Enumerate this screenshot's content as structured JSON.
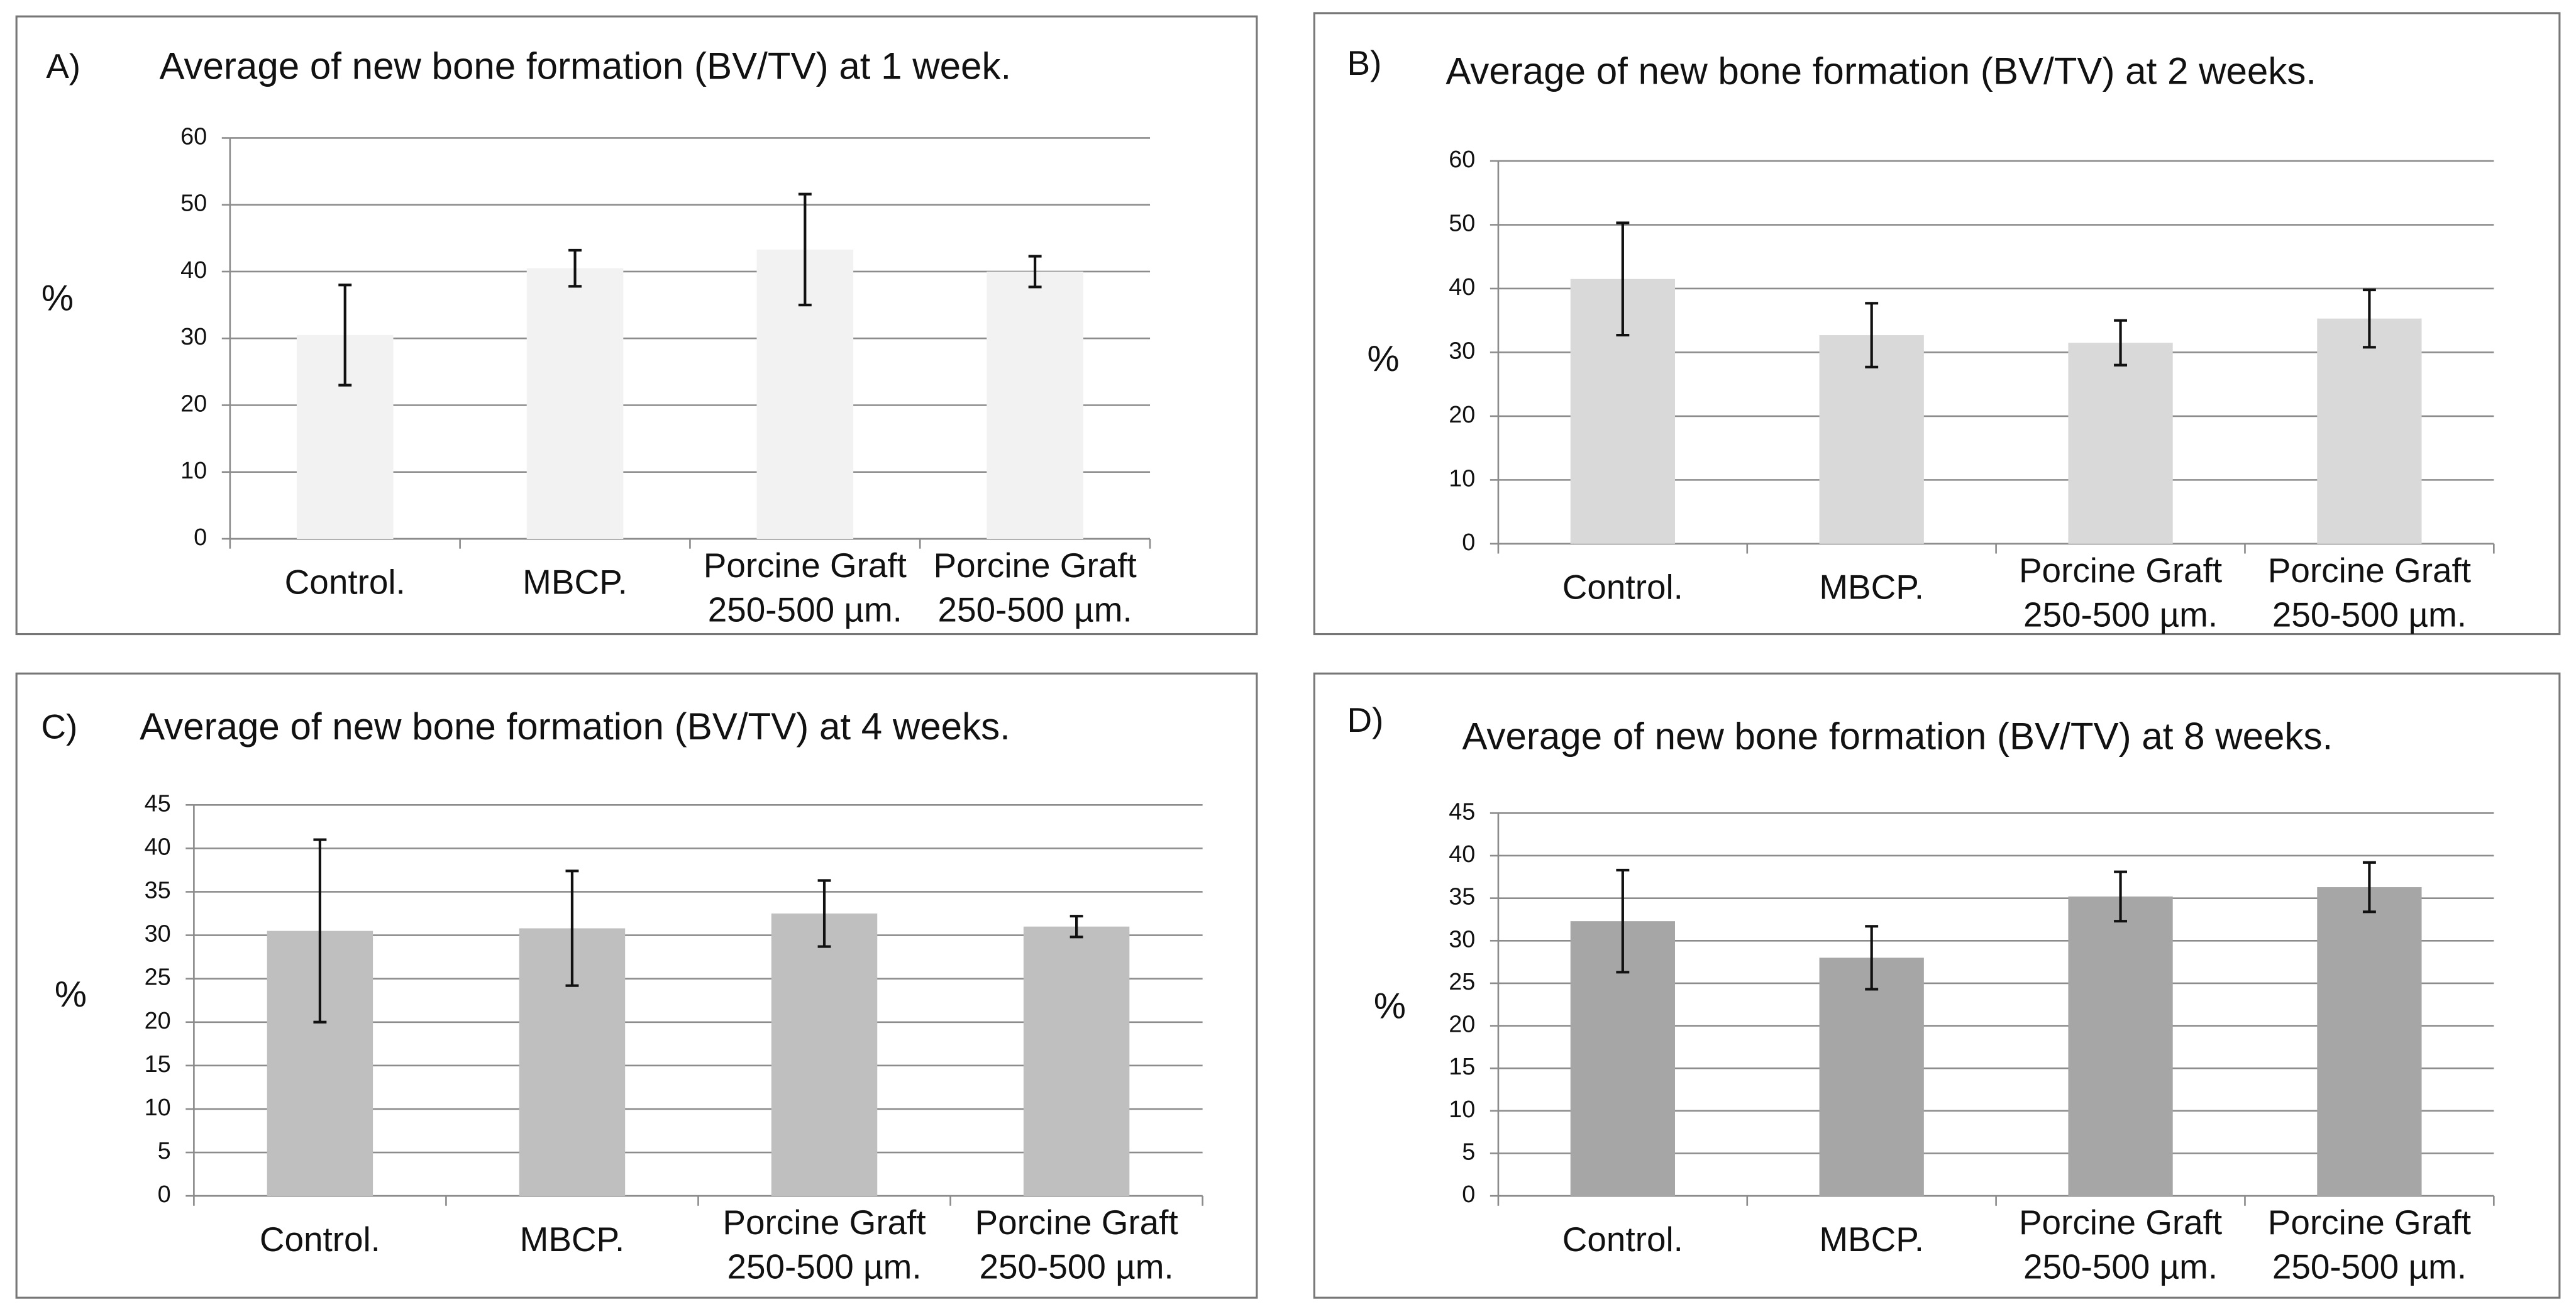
{
  "chart_data": [
    {
      "type": "bar",
      "panel_label": "A)",
      "title": "Average of new bone formation (BV/TV) at 1 week.",
      "y_label": "%",
      "categories": [
        "Control.",
        "MBCP.",
        "Porcine Graft\n250-500 µm.",
        "Porcine Graft\n250-500 µm."
      ],
      "values": [
        30.5,
        40.5,
        43.3,
        40
      ],
      "errors": [
        7.5,
        2.7,
        8.3,
        2.3
      ],
      "color": "#f2f2f2",
      "ylim": [
        0,
        60
      ],
      "yticks": [
        0,
        10,
        20,
        30,
        40,
        50,
        60
      ],
      "grid": true
    },
    {
      "type": "bar",
      "panel_label": "B)",
      "title": "Average of new bone formation (BV/TV) at 2 weeks.",
      "y_label": "%",
      "categories": [
        "Control.",
        "MBCP.",
        "Porcine Graft\n250-500 µm.",
        "Porcine Graft\n250-500 µm."
      ],
      "values": [
        41.5,
        32.7,
        31.5,
        35.3
      ],
      "errors": [
        8.8,
        5,
        3.5,
        4.5
      ],
      "color": "#d9d9d9",
      "ylim": [
        0,
        60
      ],
      "yticks": [
        0,
        10,
        20,
        30,
        40,
        50,
        60
      ],
      "grid": true
    },
    {
      "type": "bar",
      "panel_label": "C)",
      "title": "Average of new bone formation (BV/TV) at 4 weeks.",
      "y_label": "%",
      "categories": [
        "Control.",
        "MBCP.",
        "Porcine Graft\n250-500 µm.",
        "Porcine Graft\n250-500 µm."
      ],
      "values": [
        30.5,
        30.8,
        32.5,
        31
      ],
      "errors": [
        10.5,
        6.6,
        3.8,
        1.2
      ],
      "color": "#bfbfbf",
      "ylim": [
        0,
        45
      ],
      "yticks": [
        0,
        5,
        10,
        15,
        20,
        25,
        30,
        35,
        40,
        45
      ],
      "grid": true
    },
    {
      "type": "bar",
      "panel_label": "D)",
      "title": "Average of new bone formation (BV/TV) at 8 weeks.",
      "y_label": "%",
      "categories": [
        "Control.",
        "MBCP.",
        "Porcine Graft\n250-500 µm.",
        "Porcine Graft\n250-500 µm."
      ],
      "values": [
        32.3,
        28,
        35.2,
        36.3
      ],
      "errors": [
        6,
        3.7,
        2.9,
        2.9
      ],
      "color": "#a6a6a6",
      "ylim": [
        0,
        45
      ],
      "yticks": [
        0,
        5,
        10,
        15,
        20,
        25,
        30,
        35,
        40,
        45
      ],
      "grid": true
    }
  ]
}
